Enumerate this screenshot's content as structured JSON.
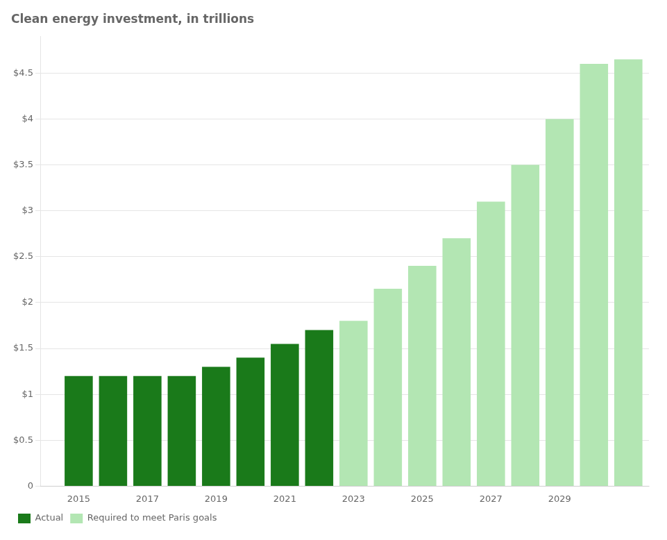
{
  "chart_data": {
    "type": "bar",
    "title": "Clean energy investment, in trillions",
    "x": [
      2015,
      2016,
      2017,
      2018,
      2019,
      2020,
      2021,
      2022,
      2023,
      2024,
      2025,
      2026,
      2027,
      2028,
      2029,
      2030,
      2031
    ],
    "series": [
      {
        "name": "Actual",
        "color": "#1a7a1a",
        "values": [
          1.2,
          1.2,
          1.2,
          1.2,
          1.3,
          1.4,
          1.55,
          1.7,
          null,
          null,
          null,
          null,
          null,
          null,
          null,
          null,
          null
        ]
      },
      {
        "name": "Required to meet Paris goals",
        "color": "#b3e6b3",
        "values": [
          null,
          null,
          null,
          null,
          null,
          null,
          null,
          null,
          1.8,
          2.15,
          2.4,
          2.7,
          3.1,
          3.5,
          4.0,
          4.6,
          4.65
        ]
      }
    ],
    "xlim": [
      2013.9,
      2031.6
    ],
    "xticks": [
      2015,
      2017,
      2019,
      2021,
      2023,
      2025,
      2027,
      2029
    ],
    "ylim": [
      0,
      4.9
    ],
    "yticks": [
      0,
      {
        "value": 0.5,
        "label": "$0.5"
      },
      {
        "value": 1.0,
        "label": "$1"
      },
      {
        "value": 1.5,
        "label": "$1.5"
      },
      {
        "value": 2.0,
        "label": "$2"
      },
      {
        "value": 2.5,
        "label": "$2.5"
      },
      {
        "value": 3.0,
        "label": "$3"
      },
      {
        "value": 3.5,
        "label": "$3.5"
      },
      {
        "value": 4.0,
        "label": "$4"
      },
      {
        "value": 4.5,
        "label": "$4.5"
      }
    ],
    "grid": true,
    "legend": "lower left"
  }
}
